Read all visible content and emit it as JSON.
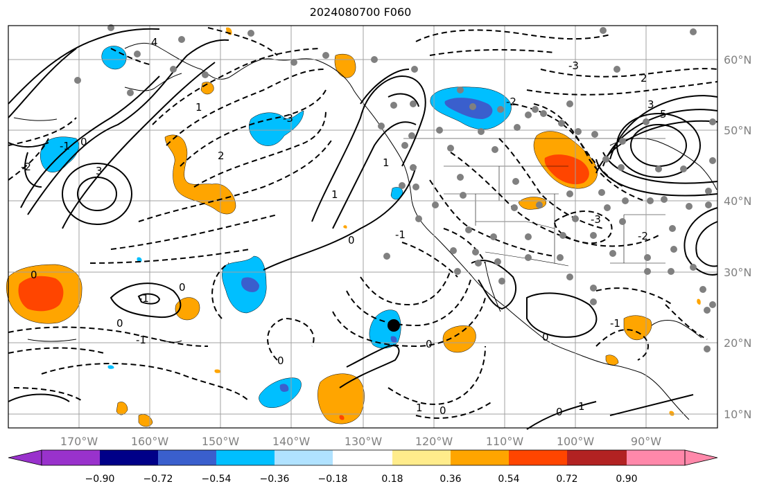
{
  "title": "2024080700 F060",
  "map": {
    "lon_ticks": [
      "170°W",
      "160°W",
      "150°W",
      "140°W",
      "130°W",
      "120°W",
      "110°W",
      "100°W",
      "90°W"
    ],
    "lat_ticks": [
      "60°N",
      "50°N",
      "40°N",
      "30°N",
      "20°N",
      "10°N"
    ],
    "contour_labels": [
      "1",
      "2",
      "3",
      "4",
      "-1",
      "-2",
      "-3",
      "0",
      "0",
      "0",
      "0",
      "-1",
      "-1",
      "1",
      "0",
      "1",
      "-2",
      "-3",
      "3",
      "5",
      "2",
      "-3",
      "-2",
      "0",
      "1",
      "0",
      "0",
      "0",
      "-1",
      "0",
      "1",
      "-1"
    ],
    "colors": {
      "land_line": "#000000",
      "grid": "#a0a0a0",
      "station": "#808080",
      "marker": "#000000"
    }
  },
  "colorbar": {
    "ticks": [
      "−0.90",
      "−0.72",
      "−0.54",
      "−0.36",
      "−0.18",
      "0.18",
      "0.36",
      "0.54",
      "0.72",
      "0.90"
    ],
    "colors": [
      "#9932cc",
      "#000088",
      "#3a5fcd",
      "#00bfff",
      "#b0e2ff",
      "#ffffff",
      "#ffec8b",
      "#ffa500",
      "#ff4500",
      "#b22222",
      "#ff88aa"
    ]
  }
}
